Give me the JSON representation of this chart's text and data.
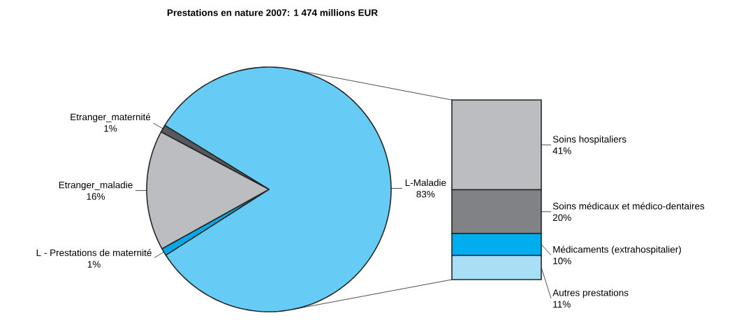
{
  "chart_data": [
    {
      "type": "pie",
      "title": "Prestations en nature 2007: 1 474 millions EUR",
      "categories": [
        "L - Prestations de maternité",
        "L-Maladie",
        "Etranger_maternité",
        "Etranger_maladie"
      ],
      "values": [
        1,
        83,
        1,
        16
      ],
      "colors": [
        "#00a9e8",
        "#66ccf5",
        "#58595b",
        "#bcbdc0"
      ],
      "value_labels": [
        "1%",
        "83%",
        "1%",
        "16%"
      ]
    },
    {
      "type": "bar",
      "stacked": true,
      "categories": [
        null
      ],
      "series": [
        {
          "name": "Autres prestations",
          "color": "#a8dff7",
          "values": [
            11
          ],
          "value_labels": [
            "11%"
          ]
        },
        {
          "name": "Médicaments (extrahospitalier)",
          "color": "#00aeef",
          "values": [
            10
          ],
          "value_labels": [
            "10%"
          ]
        },
        {
          "name": "Soins médicaux et médico-dentaires",
          "color": "#808285",
          "values": [
            20
          ],
          "value_labels": [
            "20%"
          ]
        },
        {
          "name": "Soins hospitaliers",
          "color": "#bcbdc0",
          "values": [
            41
          ],
          "value_labels": [
            "41%"
          ]
        }
      ]
    }
  ]
}
